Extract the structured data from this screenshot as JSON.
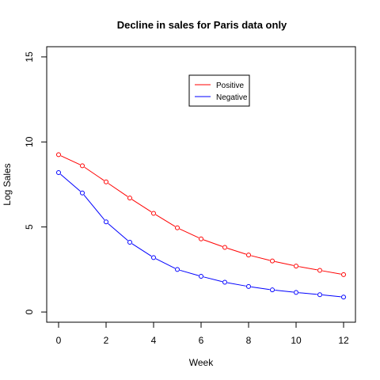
{
  "chart_data": {
    "type": "line",
    "title": "Decline in sales for Paris data only",
    "xlabel": "Week",
    "ylabel": "Log Sales",
    "xlim": [
      -0.5,
      12.5
    ],
    "ylim": [
      -0.6,
      15.6
    ],
    "xticks": [
      0,
      2,
      4,
      6,
      8,
      10,
      12
    ],
    "yticks": [
      0,
      5,
      10,
      15
    ],
    "grid": false,
    "legend_position": "top-center",
    "x": [
      0,
      1,
      2,
      3,
      4,
      5,
      6,
      7,
      8,
      9,
      10,
      11,
      12
    ],
    "series": [
      {
        "name": "Positive",
        "color": "#ff0000",
        "values": [
          9.25,
          8.6,
          7.65,
          6.7,
          5.8,
          4.95,
          4.3,
          3.8,
          3.35,
          3.0,
          2.7,
          2.45,
          2.2
        ]
      },
      {
        "name": "Negative",
        "color": "#0000ff",
        "values": [
          8.2,
          7.0,
          5.3,
          4.1,
          3.2,
          2.5,
          2.1,
          1.75,
          1.5,
          1.3,
          1.15,
          1.02,
          0.88
        ]
      }
    ]
  }
}
